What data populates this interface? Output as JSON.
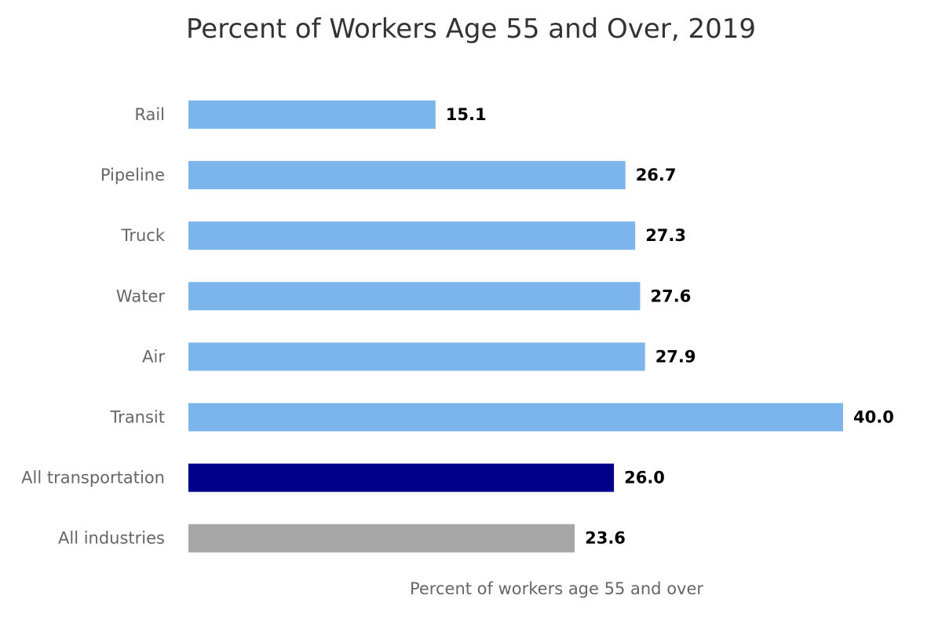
{
  "chart_data": {
    "type": "bar",
    "orientation": "horizontal",
    "title": "Percent of Workers Age 55 and Over, 2019",
    "xlabel": "Percent of workers age 55 and over",
    "ylabel": "",
    "categories": [
      "Rail",
      "Pipeline",
      "Truck",
      "Water",
      "Air",
      "Transit",
      "All transportation",
      "All industries"
    ],
    "values": [
      15.1,
      26.7,
      27.3,
      27.6,
      27.9,
      40.0,
      26.0,
      23.6
    ],
    "value_labels": [
      "15.1",
      "26.7",
      "27.3",
      "27.6",
      "27.9",
      "40.0",
      "26.0",
      "23.6"
    ],
    "colors": [
      "#7cb5ec",
      "#7cb5ec",
      "#7cb5ec",
      "#7cb5ec",
      "#7cb5ec",
      "#7cb5ec",
      "#00008b",
      "#a6a6a6"
    ],
    "xlim": [
      0,
      40
    ],
    "grid": false,
    "legend": "none"
  }
}
